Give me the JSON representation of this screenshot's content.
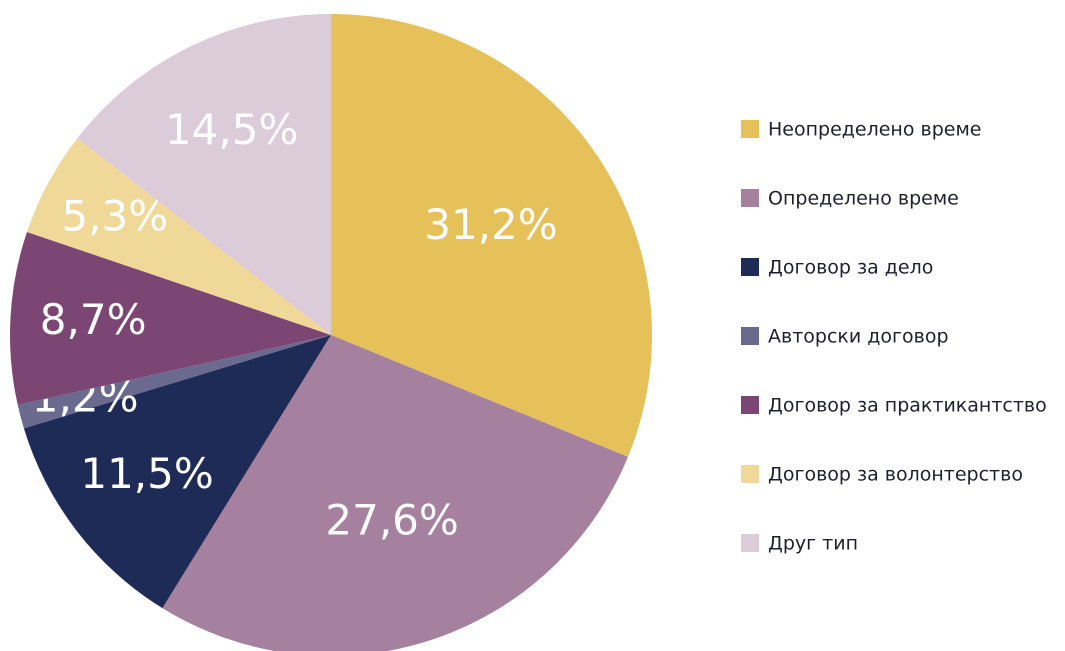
{
  "chart_data": {
    "type": "pie",
    "categories": [
      "Неопределено време",
      "Определено време",
      "Договор за дело",
      "Авторски договор",
      "Договор за практикантство",
      "Договор за волонтерство",
      "Друг тип"
    ],
    "values": [
      31.2,
      27.6,
      11.5,
      1.2,
      8.7,
      5.3,
      14.5
    ],
    "value_labels": [
      "31,2%",
      "27,6%",
      "11,5%",
      "1,2%",
      "8,7%",
      "5,3%",
      "14,5%"
    ],
    "colors": [
      "#e6c15a",
      "#a5819f",
      "#1f2b57",
      "#6a6a8e",
      "#7b4574",
      "#f0d898",
      "#dccbd9"
    ],
    "legend": "right"
  }
}
